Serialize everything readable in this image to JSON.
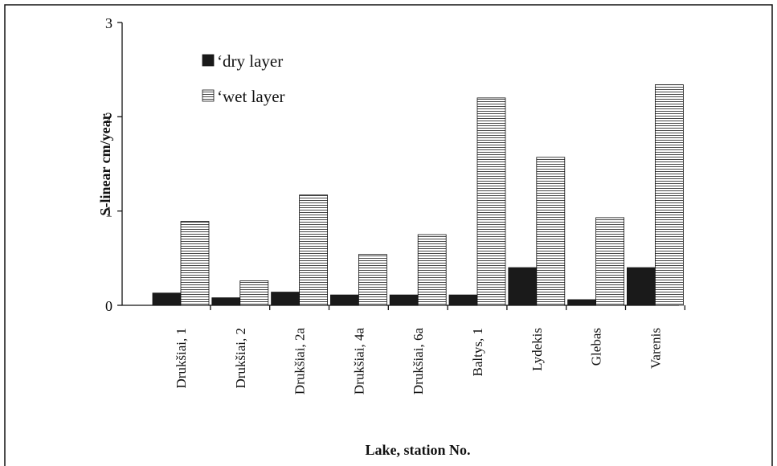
{
  "chart_data": {
    "type": "bar",
    "x_label": "Lake, station No.",
    "y_label": "S-linear cm/year",
    "categories": [
      "Drukšiai, 1",
      "Drukšiai, 2",
      "Drukšiai, 2a",
      "Drukšiai, 4a",
      "Drukšiai, 6a",
      "Baltys, 1",
      "Lydekis",
      "Glebas",
      "Varenis"
    ],
    "series": [
      {
        "name": "‘dry layer",
        "color": "#1a1a1a",
        "values": [
          0.13,
          0.08,
          0.14,
          0.11,
          0.11,
          0.11,
          0.4,
          0.06,
          0.4
        ]
      },
      {
        "name": "‘wet layer",
        "color": "#ffffff",
        "pattern": "horizontal-stripes",
        "values": [
          0.89,
          0.26,
          1.17,
          0.54,
          0.75,
          2.2,
          1.57,
          0.93,
          2.34
        ]
      }
    ],
    "ylim": [
      0,
      3
    ],
    "yticks": [
      0,
      1,
      2,
      3
    ],
    "grid": false,
    "legend": "top-left"
  }
}
